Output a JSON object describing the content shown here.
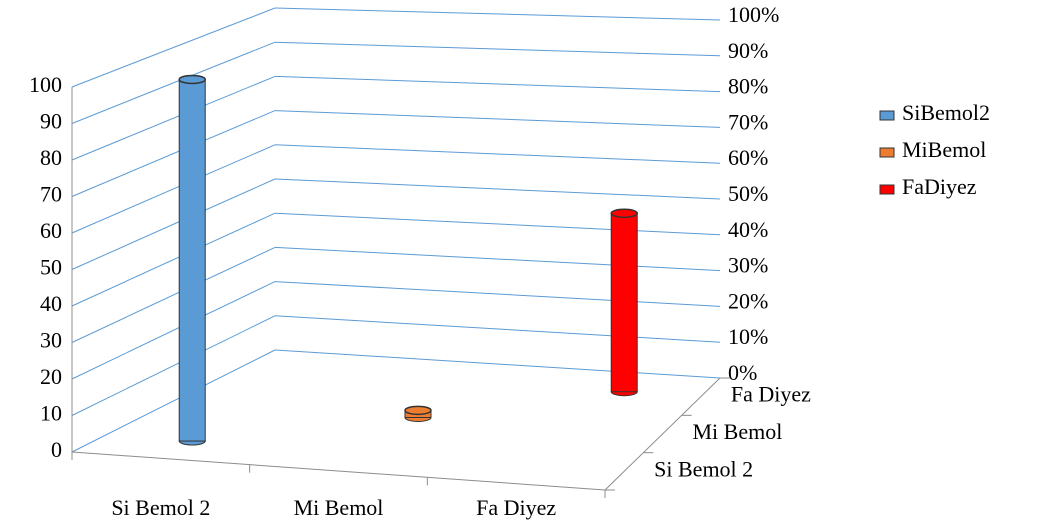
{
  "chart_data": {
    "type": "bar3d",
    "categories": [
      "Si Bemol 2",
      "Mi Bemol",
      "Fa Diyez"
    ],
    "depth_labels": [
      "Si Bemol 2",
      "Mi Bemol",
      "Fa Diyez"
    ],
    "series": [
      {
        "name": "SiBemol2",
        "color": "#5b9bd5",
        "values": [
          100,
          null,
          null
        ]
      },
      {
        "name": "MiBemol",
        "color": "#ed7d31",
        "values": [
          null,
          2,
          null
        ]
      },
      {
        "name": "FaDiyez",
        "color": "#ff0000",
        "values": [
          null,
          null,
          50
        ]
      }
    ],
    "ylim": [
      0,
      100
    ],
    "yticks": [
      0,
      10,
      20,
      30,
      40,
      50,
      60,
      70,
      80,
      90,
      100
    ],
    "y2lim": [
      0,
      100
    ],
    "y2ticks": [
      {
        "value": 0,
        "label": "0%"
      },
      {
        "value": 10,
        "label": "10%"
      },
      {
        "value": 20,
        "label": "20%"
      },
      {
        "value": 30,
        "label": "30%"
      },
      {
        "value": 40,
        "label": "40%"
      },
      {
        "value": 50,
        "label": "50%"
      },
      {
        "value": 60,
        "label": "60%"
      },
      {
        "value": 70,
        "label": "70%"
      },
      {
        "value": 80,
        "label": "80%"
      },
      {
        "value": 90,
        "label": "90%"
      },
      {
        "value": 100,
        "label": "100%"
      }
    ],
    "grid": true,
    "legend": "right"
  }
}
